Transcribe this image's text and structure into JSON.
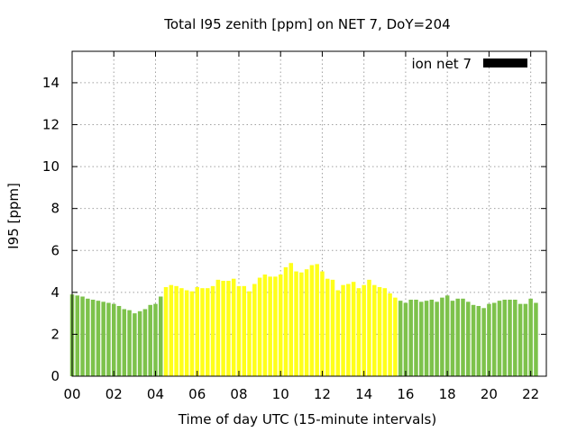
{
  "chart_data": {
    "type": "bar",
    "title": "Total I95 zenith [ppm] on NET 7, DoY=204",
    "xlabel": "Time of day UTC (15-minute intervals)",
    "ylabel": "I95 [ppm]",
    "xlim": [
      0,
      22.75
    ],
    "ylim": [
      0,
      15.5
    ],
    "x_ticks": [
      0,
      2,
      4,
      6,
      8,
      10,
      12,
      14,
      16,
      18,
      20,
      22
    ],
    "x_tick_labels": [
      "00",
      "02",
      "04",
      "06",
      "08",
      "10",
      "12",
      "14",
      "16",
      "18",
      "20",
      "22"
    ],
    "y_ticks": [
      0,
      2,
      4,
      6,
      8,
      10,
      12,
      14
    ],
    "y_tick_labels": [
      "0",
      "2",
      "4",
      "6",
      "8",
      "10",
      "12",
      "14"
    ],
    "grid": true,
    "legend": {
      "position": "top-right",
      "label": "ion net 7",
      "color": "#000000"
    },
    "colors": {
      "night": "#7dc24b",
      "day": "#ffff1a"
    },
    "bar_interval_hours": 0.25,
    "day_period_hours": [
      4.5,
      15.75
    ],
    "series": [
      {
        "values": [
          3.9,
          3.85,
          3.8,
          3.7,
          3.65,
          3.6,
          3.55,
          3.5,
          3.45,
          3.35,
          3.2,
          3.15,
          3.0,
          3.1,
          3.2,
          3.4,
          3.45,
          3.8,
          4.25,
          4.35,
          4.3,
          4.2,
          4.1,
          4.05,
          4.25,
          4.2,
          4.2,
          4.3,
          4.6,
          4.55,
          4.55,
          4.65,
          4.3,
          4.3,
          4.05,
          4.4,
          4.7,
          4.85,
          4.75,
          4.75,
          4.85,
          5.2,
          5.4,
          5.0,
          4.95,
          5.1,
          5.3,
          5.35,
          5.0,
          4.65,
          4.6,
          4.1,
          4.35,
          4.4,
          4.5,
          4.2,
          4.35,
          4.6,
          4.35,
          4.25,
          4.2,
          3.95,
          3.75,
          3.6,
          3.5,
          3.65,
          3.65,
          3.55,
          3.6,
          3.65,
          3.55,
          3.75,
          3.85,
          3.6,
          3.7,
          3.7,
          3.55,
          3.4,
          3.35,
          3.25,
          3.45,
          3.5,
          3.6,
          3.65,
          3.65,
          3.65,
          3.45,
          3.45,
          3.7,
          3.5
        ]
      }
    ]
  }
}
